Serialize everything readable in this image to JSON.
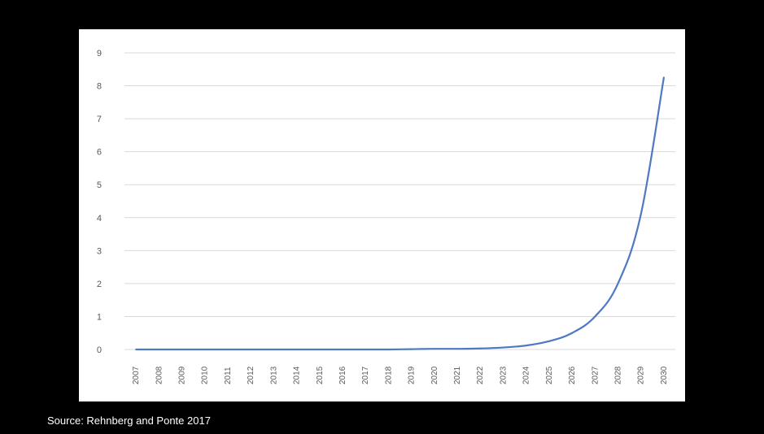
{
  "source": "Source: Rehnberg and Ponte 2017",
  "colors": {
    "background": "#000000",
    "panel": "#ffffff",
    "line": "#4f79c0",
    "grid": "#d9d9d9",
    "tick_text": "#595959"
  },
  "chart_data": {
    "type": "line",
    "title": "",
    "xlabel": "",
    "ylabel": "",
    "x": [
      2007,
      2008,
      2009,
      2010,
      2011,
      2012,
      2013,
      2014,
      2015,
      2016,
      2017,
      2018,
      2019,
      2020,
      2021,
      2022,
      2023,
      2024,
      2025,
      2026,
      2027,
      2028,
      2029,
      2030
    ],
    "series": [
      {
        "values": [
          0,
          0,
          0,
          0,
          0,
          0,
          0,
          0,
          0,
          0,
          0,
          0,
          0.01,
          0.02,
          0.02,
          0.03,
          0.06,
          0.12,
          0.25,
          0.5,
          1.0,
          2.0,
          4.1,
          8.25
        ]
      }
    ],
    "ylim": [
      0,
      9
    ],
    "yticks": [
      0,
      1,
      2,
      3,
      4,
      5,
      6,
      7,
      8,
      9
    ],
    "grid": true,
    "legend": "none"
  }
}
